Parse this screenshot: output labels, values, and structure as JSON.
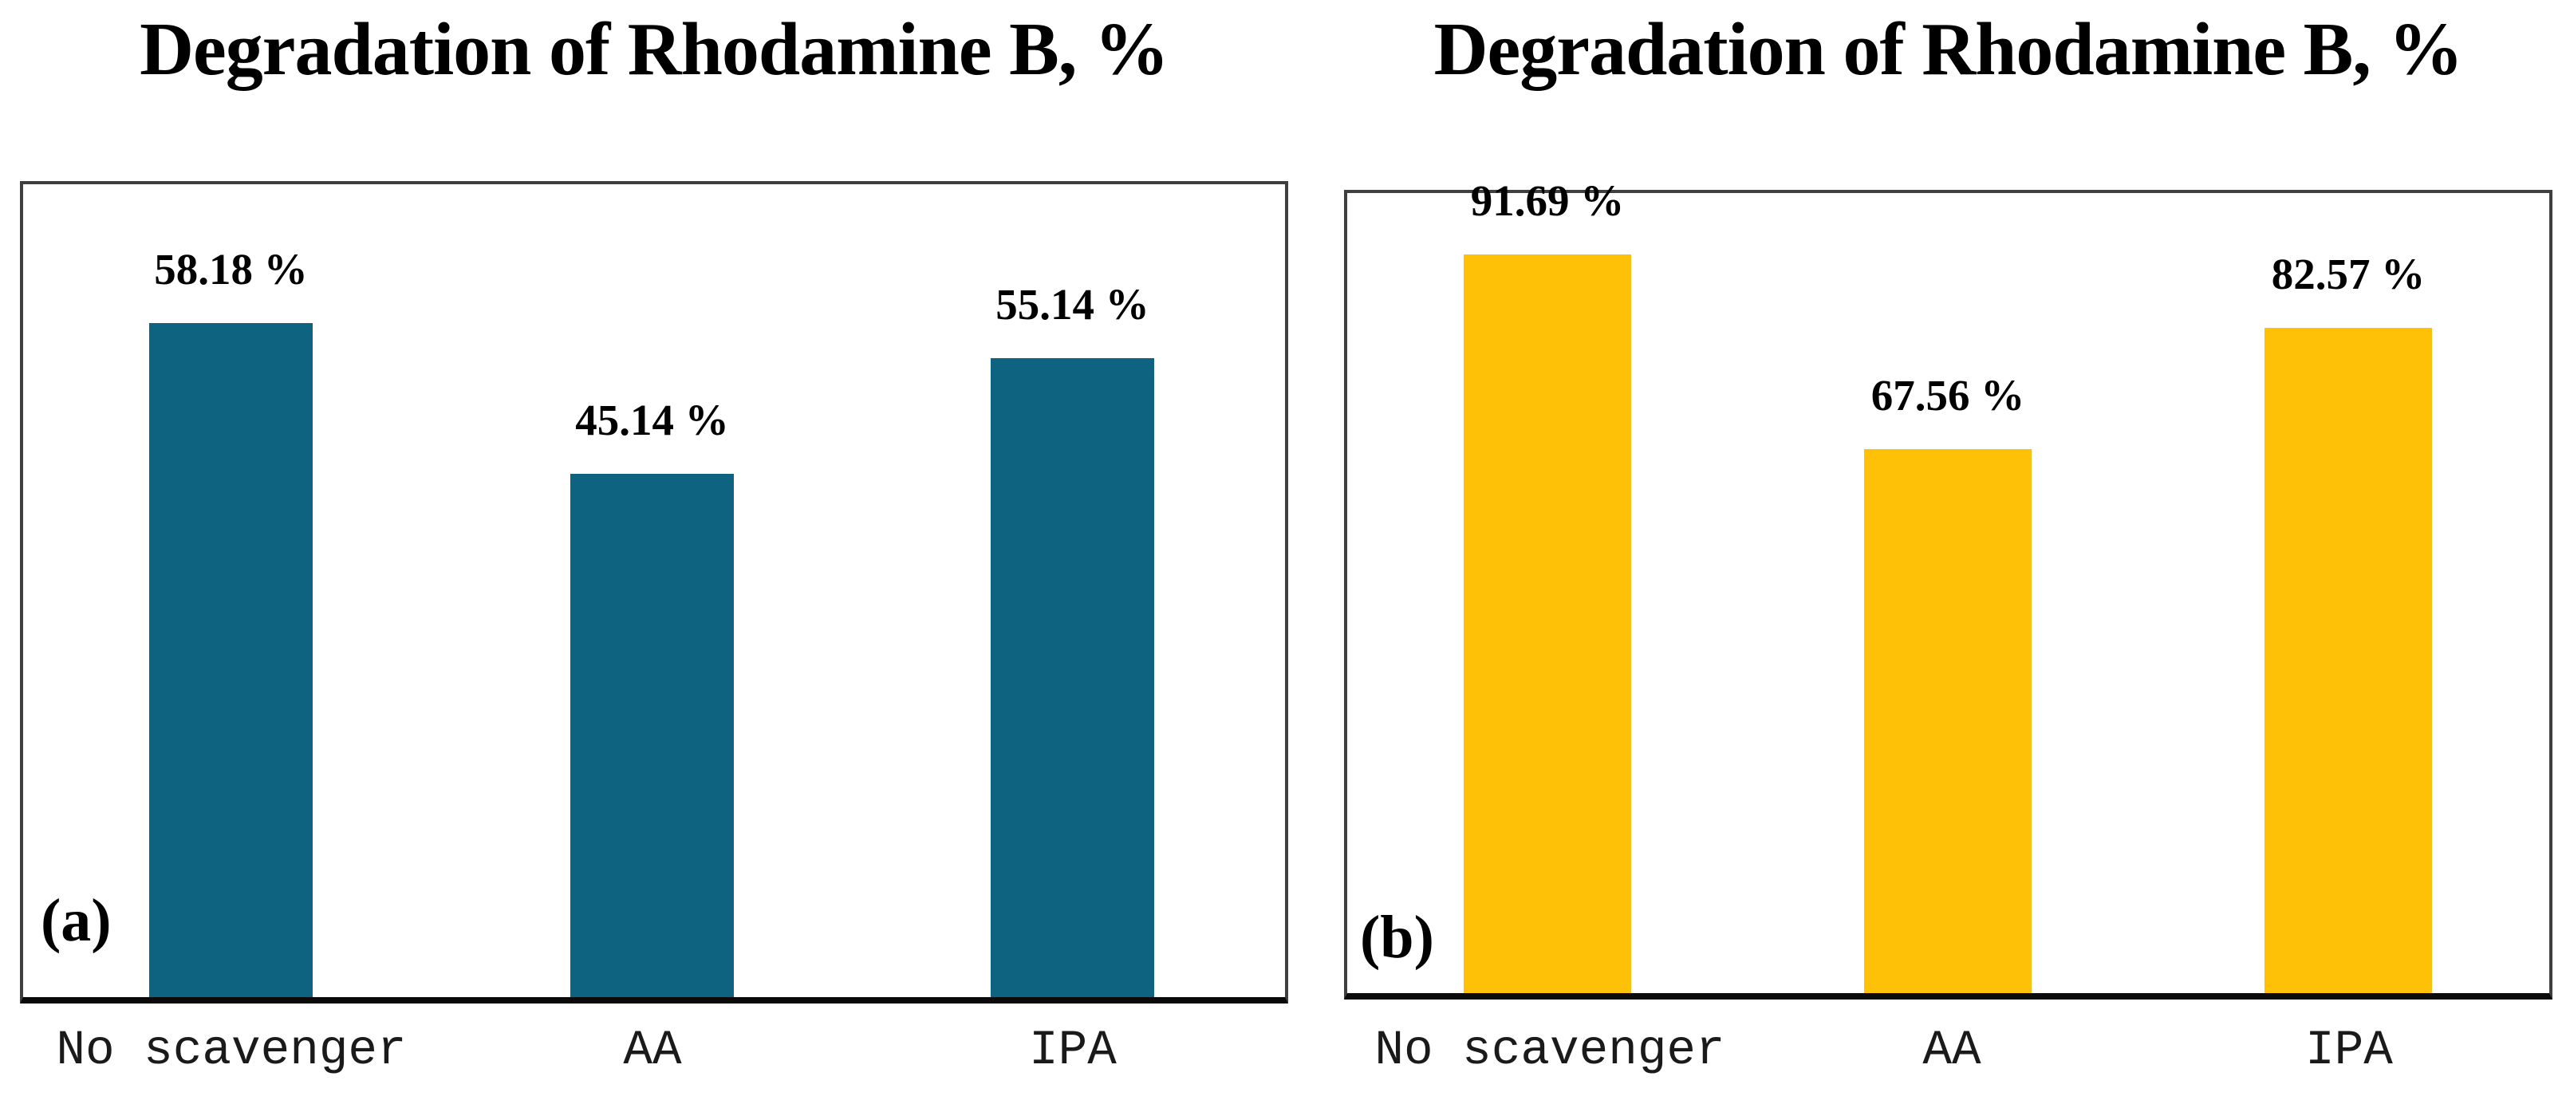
{
  "chart_data": [
    {
      "type": "bar",
      "panel_label": "(a)",
      "title": "Degradation of Rhodamine B, %",
      "categories": [
        "No scavenger",
        "AA",
        "IPA"
      ],
      "values": [
        58.18,
        45.14,
        55.14
      ],
      "value_labels": [
        "58.18 %",
        "45.14 %",
        "55.14 %"
      ],
      "bar_color": "#0E6480",
      "grid": false,
      "legend": "none",
      "yaxis": "hidden"
    },
    {
      "type": "bar",
      "panel_label": "(b)",
      "title": "Degradation of Rhodamine B, %",
      "categories": [
        "No scavenger",
        "AA",
        "IPA"
      ],
      "values": [
        91.69,
        67.56,
        82.57
      ],
      "value_labels": [
        "91.69 %",
        "67.56 %",
        "82.57 %"
      ],
      "bar_color": "#FFC107",
      "grid": false,
      "legend": "none",
      "yaxis": "hidden"
    }
  ]
}
